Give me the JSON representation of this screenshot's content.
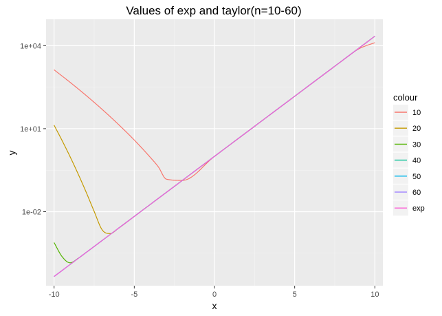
{
  "chart_data": {
    "type": "line",
    "title": "Values of exp and taylor(n=10-60)",
    "xlabel": "x",
    "ylabel": "y",
    "xlim": [
      -10.5,
      10.5
    ],
    "x_ticks": [
      -10,
      -5,
      0,
      5,
      10
    ],
    "x_tick_labels": [
      "-10",
      "-5",
      "0",
      "5",
      "10"
    ],
    "y_scale": "log10",
    "ylim": [
      2.11e-05,
      90000
    ],
    "y_ticks": [
      0.01,
      10,
      10000
    ],
    "y_tick_labels": [
      "1e-02",
      "1e+01",
      "1e+04"
    ],
    "grid": true,
    "legend_title": "colour",
    "legend_position": "right",
    "series": [
      {
        "name": "10",
        "color": "#F8766D",
        "x": [
          -10,
          -9,
          -8,
          -7,
          -6,
          -5,
          -4,
          -3.5,
          -3,
          -2,
          0,
          2,
          4,
          6,
          8,
          9,
          10
        ],
        "y": [
          1342.5,
          473.4,
          158.3,
          49.7,
          14.5,
          3.89,
          0.917,
          0.417,
          0.1498,
          0.1353,
          1,
          7.389,
          54.6,
          403.4,
          2957,
          7690,
          12842
        ]
      },
      {
        "name": "20",
        "color": "#C49A00",
        "x": [
          -10,
          -9.5,
          -9,
          -8.5,
          -8,
          -7.5,
          -7,
          -6.5,
          -6,
          -5,
          -4,
          -2,
          0,
          5,
          10
        ],
        "y": [
          13.39,
          3.72,
          0.967,
          0.231,
          0.0507,
          0.0102,
          0.0022,
          0.00162,
          0.00248,
          0.00674,
          0.0183,
          0.1353,
          1,
          148.4,
          22026
        ]
      },
      {
        "name": "30",
        "color": "#53B400",
        "x": [
          -10,
          -9.5,
          -9,
          -8.5,
          -8,
          -7,
          -5,
          0,
          5,
          10
        ],
        "y": [
          0.000763,
          0.000237,
          0.000142,
          0.000206,
          0.000335,
          0.000912,
          0.00674,
          1,
          148.4,
          22026
        ]
      },
      {
        "name": "40",
        "color": "#00C094",
        "x": [
          -10,
          -5,
          0,
          5,
          10
        ],
        "y": [
          4.54e-05,
          0.00674,
          1,
          148.4,
          22026
        ]
      },
      {
        "name": "50",
        "color": "#00B6EB",
        "x": [
          -10,
          -5,
          0,
          5,
          10
        ],
        "y": [
          4.54e-05,
          0.00674,
          1,
          148.4,
          22026
        ]
      },
      {
        "name": "60",
        "color": "#A58AFF",
        "x": [
          -10,
          -5,
          0,
          5,
          10
        ],
        "y": [
          4.54e-05,
          0.00674,
          1,
          148.4,
          22026
        ]
      },
      {
        "name": "exp",
        "color": "#FB61D7",
        "x": [
          -10,
          -5,
          0,
          5,
          10
        ],
        "y": [
          4.54e-05,
          0.00674,
          1,
          148.4,
          22026
        ]
      }
    ]
  }
}
